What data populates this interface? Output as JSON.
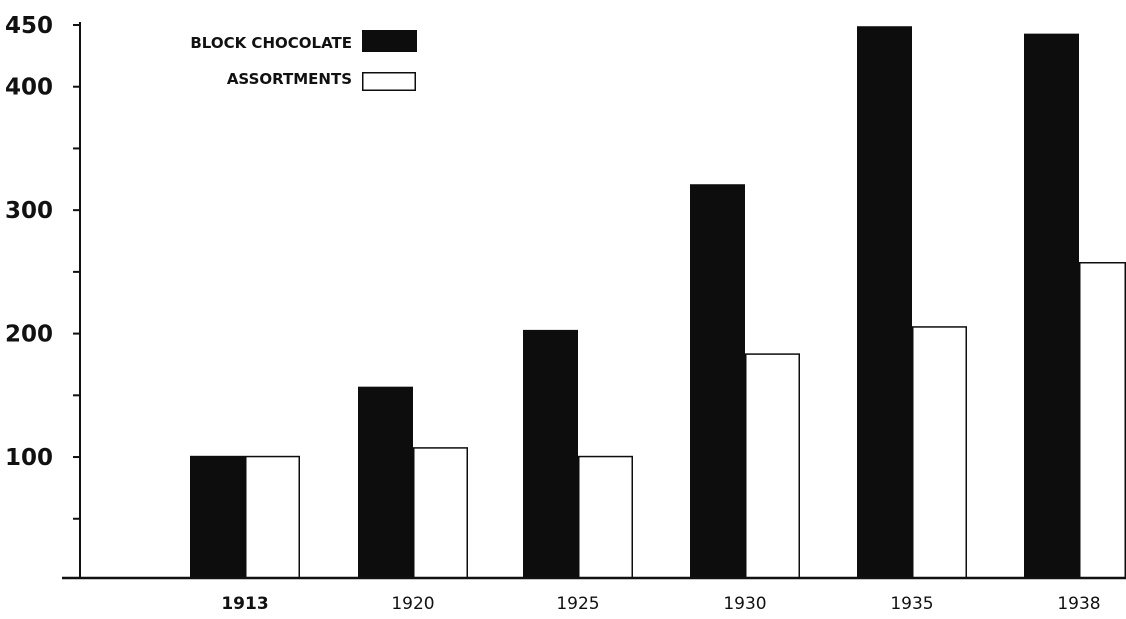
{
  "chart_data": {
    "type": "bar",
    "categories": [
      "1913",
      "1920",
      "1925",
      "1930",
      "1935",
      "1938"
    ],
    "series": [
      {
        "name": "BLOCK CHOCOLATE",
        "values": [
          101,
          157,
          203,
          321,
          449,
          443
        ],
        "color": "#0d0d0d"
      },
      {
        "name": "ASSORTMENTS",
        "values": [
          101,
          108,
          101,
          184,
          206,
          258
        ],
        "color": "#ffffff"
      }
    ],
    "y_ticks": [
      {
        "value": 450,
        "label": "450"
      },
      {
        "value": 400,
        "label": "400"
      },
      {
        "value": 350,
        "label": ""
      },
      {
        "value": 300,
        "label": "300"
      },
      {
        "value": 250,
        "label": ""
      },
      {
        "value": 200,
        "label": "200"
      },
      {
        "value": 150,
        "label": ""
      },
      {
        "value": 100,
        "label": "100"
      },
      {
        "value": 50,
        "label": ""
      }
    ],
    "ylim": [
      2,
      450
    ],
    "title": "",
    "xlabel": "",
    "ylabel": "",
    "grid": false,
    "legend_position": "top-left"
  }
}
